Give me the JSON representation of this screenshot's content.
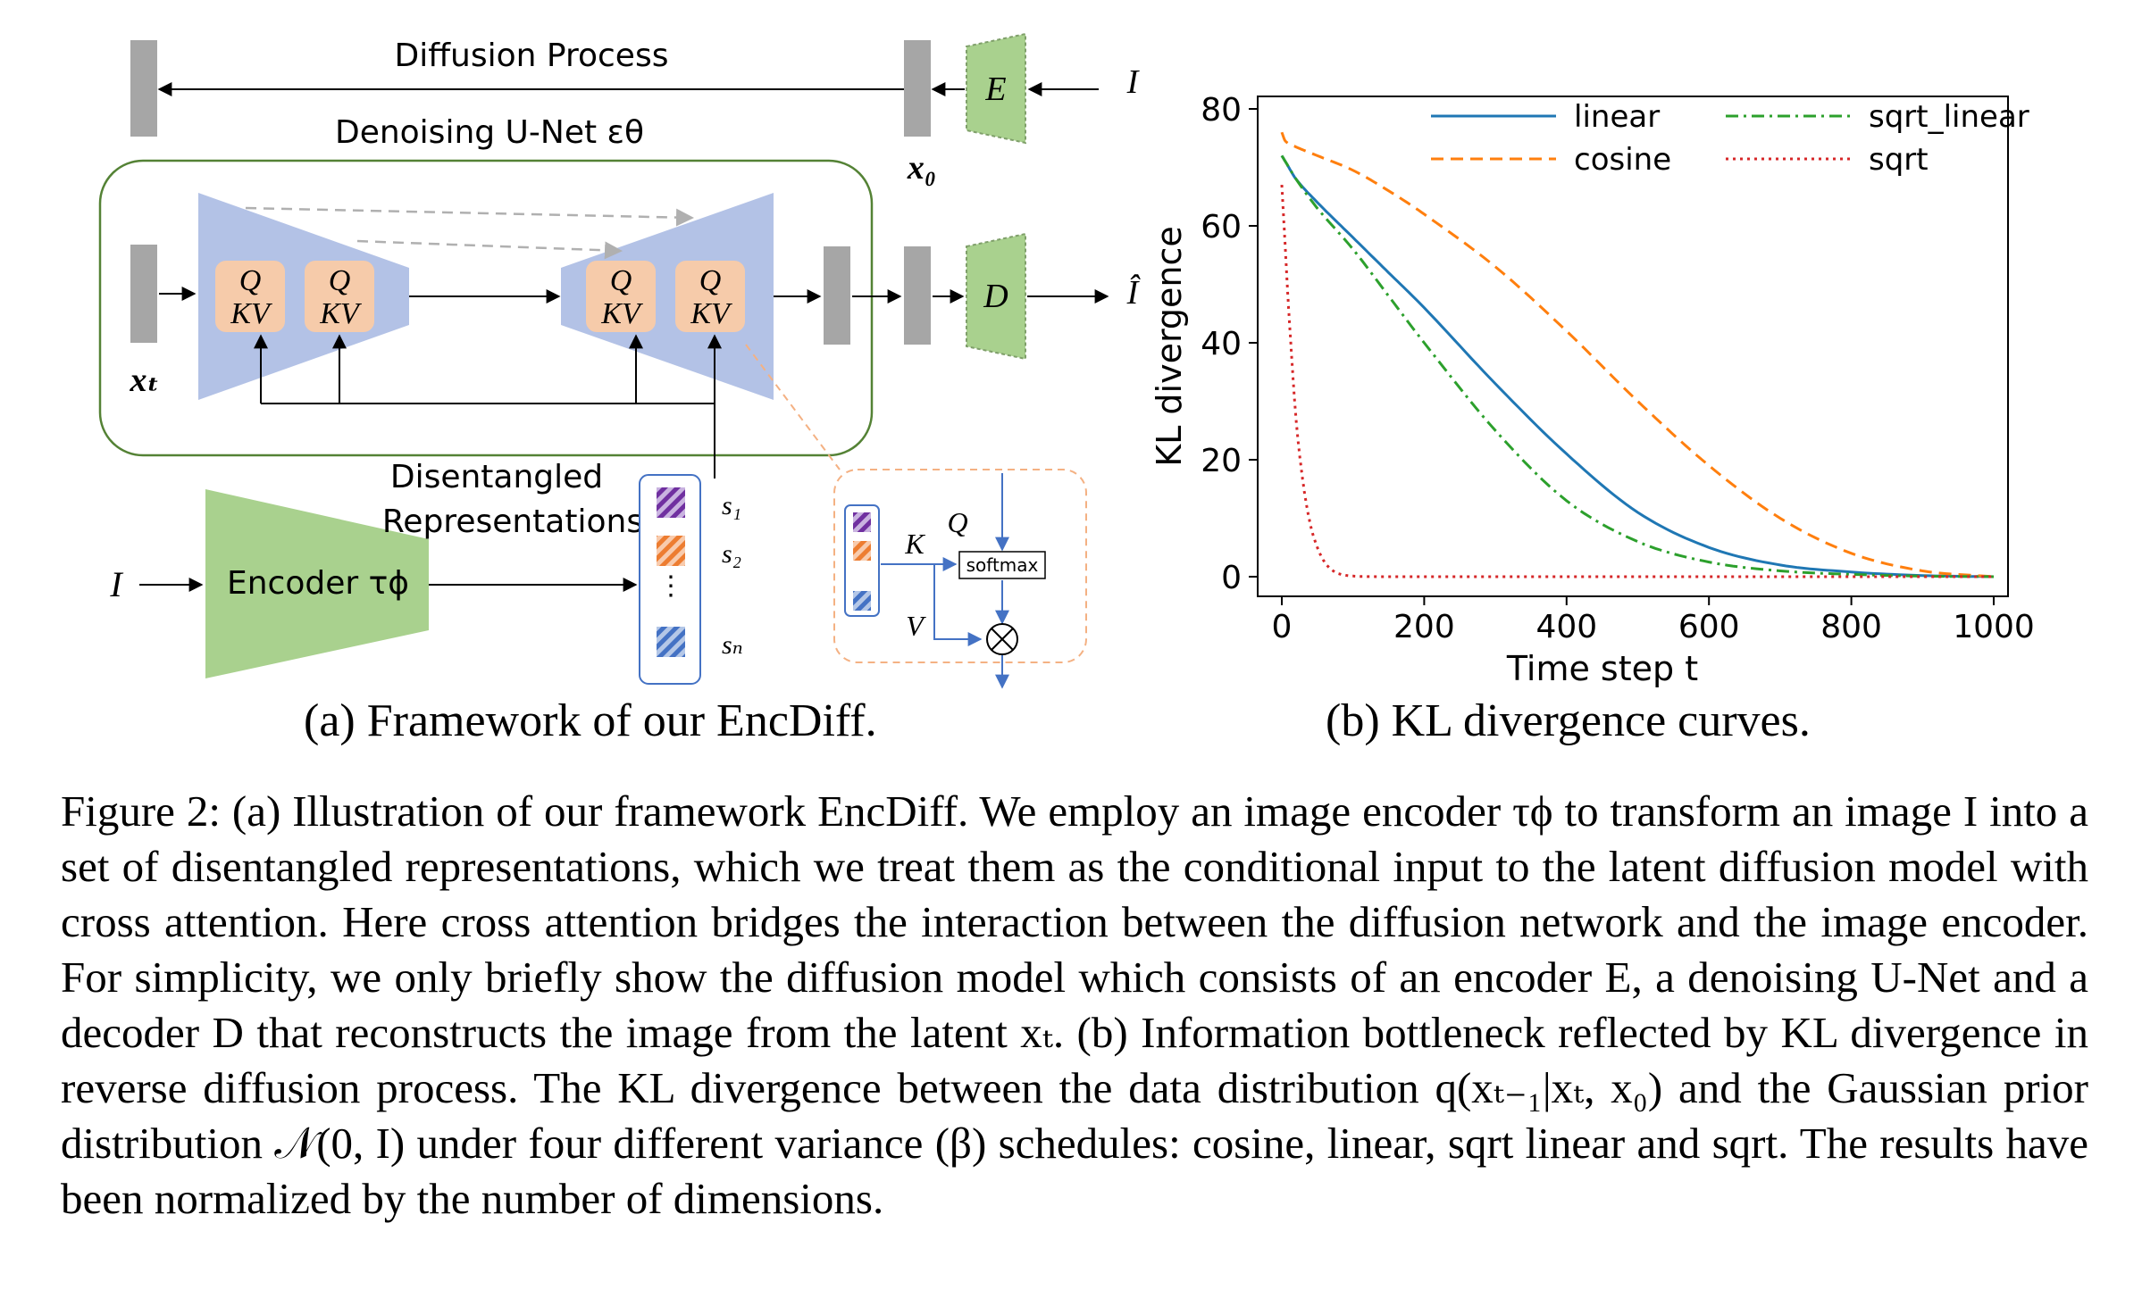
{
  "figure": {
    "panel_a": {
      "diffusion_process_label": "Diffusion Process",
      "denoising_unet_label": "Denoising U-Net εθ",
      "input_I": "I",
      "encoder_E": "E",
      "decoder_D": "D",
      "x0": "x₀",
      "xt": "xₜ",
      "output_Ihat": "Î",
      "attn_q": "Q",
      "attn_kv": "KV",
      "disentangled_label_1": "Disentangled",
      "disentangled_label_2": "Representations",
      "encoder_tau_label": "Encoder τϕ",
      "encoder_input": "I",
      "s1": "s₁",
      "s2": "s₂",
      "sN": "sₙ",
      "ellipsis": "⋮",
      "inset_K": "K",
      "inset_Q": "Q",
      "inset_V": "V",
      "inset_softmax": "softmax",
      "inset_multiply": "⊗",
      "colors": {
        "unet_blue": "#b3c2e6",
        "encoder_green": "#a9d18e",
        "attn_orange": "#f6cbaa",
        "block_gray": "#a6a6a6",
        "frame_green": "#548235",
        "inset_orange": "#f4b183",
        "stripe_purple": "#7030a0",
        "stripe_orange": "#ed7d31",
        "stripe_blue": "#4472c4"
      }
    },
    "panel_b": {
      "chart_data": {
        "type": "line",
        "xlabel": "Time step t",
        "ylabel": "KL divergence",
        "xlim": [
          0,
          1000
        ],
        "ylim": [
          0,
          80
        ],
        "xticks": [
          "0",
          "200",
          "400",
          "600",
          "800",
          "1000"
        ],
        "yticks": [
          "0",
          "20",
          "40",
          "60",
          "80"
        ],
        "grid": false,
        "legend_position": "top",
        "series": [
          {
            "name": "linear",
            "color": "#1f77b4",
            "style": "solid",
            "x": [
              0,
              5,
              20,
              50,
              100,
              150,
              200,
              300,
              400,
              500,
              600,
              700,
              800,
              900,
              1000
            ],
            "y": [
              72,
              71,
              68,
              64,
              58,
              52,
              46,
              33,
              21,
              11,
              5,
              2,
              0.8,
              0.2,
              0
            ]
          },
          {
            "name": "cosine",
            "color": "#ff7f0e",
            "style": "dashed",
            "x": [
              0,
              5,
              20,
              50,
              100,
              150,
              200,
              300,
              400,
              500,
              600,
              700,
              800,
              900,
              1000
            ],
            "y": [
              76,
              74.5,
              73.5,
              72,
              69.5,
              66,
              62,
              53,
              42,
              30,
              19,
              10,
              4,
              1,
              0
            ]
          },
          {
            "name": "sqrt_linear",
            "color": "#2ca02c",
            "style": "dashdot",
            "x": [
              0,
              5,
              20,
              50,
              100,
              150,
              200,
              300,
              400,
              500,
              600,
              700,
              800,
              900,
              1000
            ],
            "y": [
              72,
              71,
              68,
              63,
              56,
              48,
              40,
              25,
              13,
              6,
              2.5,
              1,
              0.4,
              0.1,
              0
            ]
          },
          {
            "name": "sqrt",
            "color": "#d62728",
            "style": "dotted",
            "x": [
              0,
              5,
              10,
              20,
              30,
              40,
              50,
              60,
              70,
              80,
              100,
              150,
              200,
              400,
              600,
              800,
              1000
            ],
            "y": [
              67,
              56,
              45,
              27,
              16,
              9,
              5,
              2.5,
              1.2,
              0.5,
              0.1,
              0,
              0,
              0,
              0,
              0,
              0
            ]
          }
        ]
      }
    },
    "subcaption_a": "(a) Framework of our EncDiff.",
    "subcaption_b": "(b) KL divergence curves.",
    "caption": "Figure 2: (a) Illustration of our framework EncDiff. We employ an image encoder τϕ to transform an image I into a set of disentangled representations, which we treat them as the conditional input to the latent diffusion model with cross attention. Here cross attention bridges the interaction between the diffusion network and the image encoder. For simplicity, we only briefly show the diffusion model which consists of an encoder E, a denoising U-Net and a decoder D that reconstructs the image from the latent xₜ. (b) Information bottleneck reflected by KL divergence in reverse diffusion process. The KL divergence between the data distribution q(xₜ₋₁|xₜ, x₀) and the Gaussian prior distribution 𝒩(0, I) under four different variance (β) schedules: cosine, linear, sqrt linear and sqrt. The results have been normalized by the number of dimensions."
  }
}
